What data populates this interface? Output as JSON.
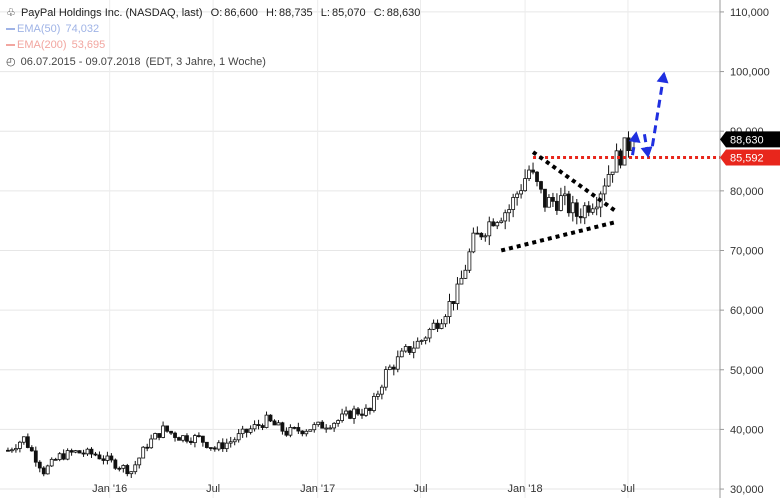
{
  "header": {
    "title": "PayPal Holdings Inc. (NASDAQ, last)",
    "ohlc": {
      "O": "86,600",
      "H": "88,735",
      "L": "85,070",
      "C": "88,630"
    },
    "ema50_label": "EMA(50)",
    "ema50_value": "74,032",
    "ema200_label": "EMA(200)",
    "ema200_value": "53,695",
    "range": "06.07.2015 - 09.07.2018",
    "info": "(EDT, 3 Jahre, 1 Woche)"
  },
  "colors": {
    "ema50": "#9fb3e6",
    "ema200": "#f2a6a0",
    "resistance": "#e8261c",
    "arrow": "#1f2fe0",
    "last_tag": "#000000",
    "level_tag": "#e8261c"
  },
  "chart_data": {
    "type": "candlestick",
    "title": "",
    "y_ticks": [
      "30,000",
      "40,000",
      "50,000",
      "60,000",
      "70,000",
      "80,000",
      "90,000",
      "100,000",
      "110,000"
    ],
    "y_tick_values": [
      30,
      40,
      50,
      60,
      70,
      80,
      90,
      100,
      110
    ],
    "x_ticks": [
      "Jan '16",
      "Jul",
      "Jan '17",
      "Jul",
      "Jan '18",
      "Jul"
    ],
    "x_tick_dates": [
      "2016-01-01",
      "2016-07-01",
      "2017-01-01",
      "2017-07-01",
      "2018-01-01",
      "2018-07-01"
    ],
    "ylim": [
      28.5,
      112
    ],
    "xlim": [
      "2015-06-22",
      "2018-12-10"
    ],
    "last_price": 88.63,
    "last_label": "88,630",
    "resistance": 85.592,
    "resistance_label": "85,592",
    "grid": true,
    "closes": [
      [
        "2015-07-06",
        36.5
      ],
      [
        "2015-08-03",
        38.5
      ],
      [
        "2015-09-07",
        33.0
      ],
      [
        "2015-10-05",
        35.5
      ],
      [
        "2015-11-02",
        36.2
      ],
      [
        "2015-12-07",
        35.8
      ],
      [
        "2016-01-04",
        34.5
      ],
      [
        "2016-02-08",
        33.0
      ],
      [
        "2016-03-07",
        37.5
      ],
      [
        "2016-04-04",
        40.0
      ],
      [
        "2016-05-02",
        38.8
      ],
      [
        "2016-06-06",
        38.5
      ],
      [
        "2016-07-04",
        36.8
      ],
      [
        "2016-08-01",
        38.0
      ],
      [
        "2016-09-05",
        40.0
      ],
      [
        "2016-10-03",
        41.5
      ],
      [
        "2016-11-07",
        39.5
      ],
      [
        "2016-12-05",
        40.0
      ],
      [
        "2017-01-02",
        40.5
      ],
      [
        "2017-02-06",
        41.5
      ],
      [
        "2017-03-06",
        43.0
      ],
      [
        "2017-04-03",
        43.0
      ],
      [
        "2017-05-01",
        49.5
      ],
      [
        "2017-06-05",
        53.0
      ],
      [
        "2017-07-03",
        55.0
      ],
      [
        "2017-08-07",
        59.0
      ],
      [
        "2017-09-04",
        63.0
      ],
      [
        "2017-10-02",
        71.5
      ],
      [
        "2017-11-06",
        75.5
      ],
      [
        "2017-12-04",
        77.0
      ],
      [
        "2018-01-08",
        83.5
      ],
      [
        "2018-02-05",
        78.0
      ],
      [
        "2018-03-05",
        78.5
      ],
      [
        "2018-04-02",
        76.0
      ],
      [
        "2018-05-07",
        79.0
      ],
      [
        "2018-06-04",
        84.5
      ],
      [
        "2018-07-09",
        88.63
      ]
    ],
    "annotations": {
      "resistance_line": {
        "from": "2018-01-15",
        "to": "2018-12-10",
        "value": 85.592
      },
      "upper_trend": [
        [
          "2018-01-15",
          86.5
        ],
        [
          "2018-06-11",
          76.5
        ]
      ],
      "lower_trend": [
        [
          "2017-11-20",
          70.0
        ],
        [
          "2018-06-11",
          74.8
        ]
      ],
      "arrow_up_small": [
        [
          "2018-07-09",
          86.0
        ],
        [
          "2018-07-16",
          90.0
        ]
      ],
      "arrow_down": [
        [
          "2018-07-30",
          89.5
        ],
        [
          "2018-08-06",
          85.5
        ]
      ],
      "arrow_up_large": [
        [
          "2018-08-13",
          87.5
        ],
        [
          "2018-09-03",
          100.0
        ]
      ]
    }
  }
}
